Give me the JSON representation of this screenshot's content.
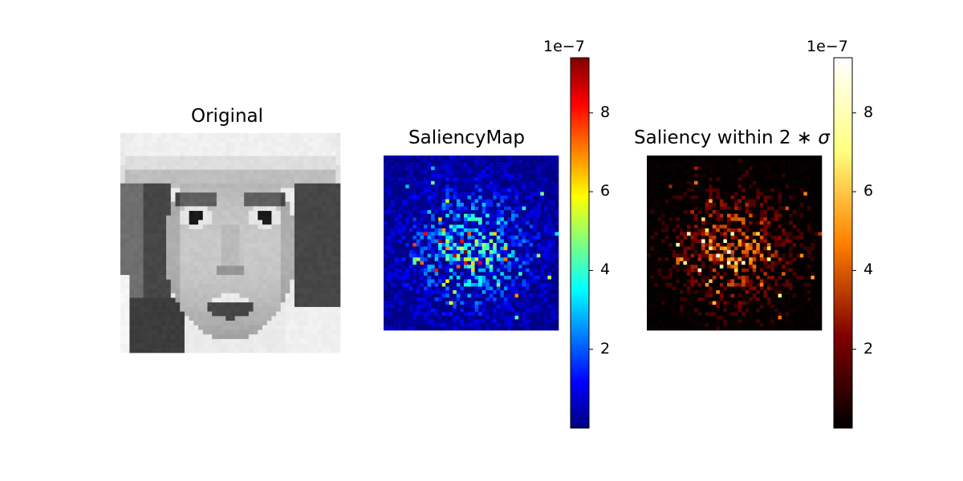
{
  "chart_data": [
    {
      "type": "heatmap",
      "title": "Original",
      "colormap": "gray",
      "grid": false,
      "axes": "off"
    },
    {
      "type": "heatmap",
      "title": "SaliencyMap",
      "colormap": "jet",
      "grid": false,
      "axes": "off",
      "colorbar": {
        "range": [
          0,
          9.4
        ],
        "ticks": [
          "2",
          "4",
          "6",
          "8"
        ],
        "tick_values": [
          2,
          4,
          6,
          8
        ],
        "exponent_label": "1e−7"
      }
    },
    {
      "type": "heatmap",
      "title_text": "Saliency within 2",
      "title_math": "∗ σ",
      "colormap": "afmhot",
      "grid": false,
      "axes": "off",
      "colorbar": {
        "range": [
          0,
          9.4
        ],
        "ticks": [
          "2",
          "4",
          "6",
          "8"
        ],
        "tick_values": [
          2,
          4,
          6,
          8
        ],
        "exponent_label": "1e−7"
      }
    }
  ],
  "colors": {
    "jet": [
      "#00007f",
      "#0000ff",
      "#007fff",
      "#00ffff",
      "#7fff7f",
      "#ffff00",
      "#ff7f00",
      "#ff0000",
      "#7f0000"
    ],
    "afmhot": [
      "#000000",
      "#800000",
      "#ff8000",
      "#ffff80",
      "#ffffff"
    ]
  }
}
